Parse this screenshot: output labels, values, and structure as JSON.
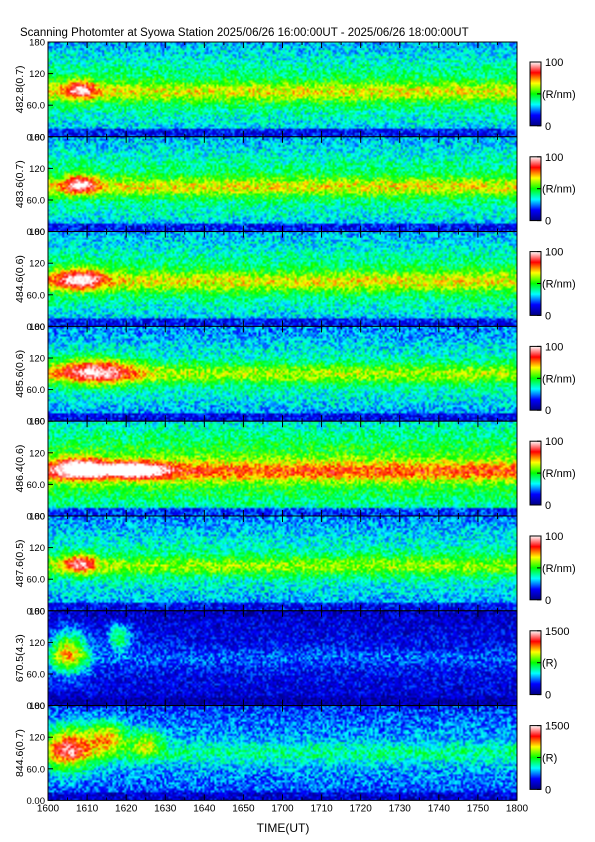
{
  "chart_data": {
    "type": "heatmap",
    "title": "Scanning Photomter at Syowa Station  2025/06/26 16:00:00UT - 2025/06/26 18:00:00UT",
    "xlabel": "TIME(UT)",
    "x_ticks": [
      "1600",
      "1610",
      "1620",
      "1630",
      "1640",
      "1650",
      "1700",
      "1710",
      "1720",
      "1730",
      "1740",
      "1750",
      "1800"
    ],
    "y_ticks": [
      "0.00",
      "60.0",
      "120",
      "180"
    ],
    "ylim": [
      0,
      180
    ],
    "colormap": [
      "#000080",
      "#0000ff",
      "#00ffff",
      "#00ff00",
      "#ffff00",
      "#ff0000",
      "#ffffff"
    ],
    "panels": [
      {
        "ylabel": "482.8(0.7)",
        "cbar_max": "100",
        "cbar_min": "0",
        "unit": "(R/nm)",
        "scale": 100,
        "band": [
          85,
          30,
          60
        ],
        "burst": [
          [
            8,
            90,
            4,
            18,
            65
          ]
        ],
        "bg": 0.45
      },
      {
        "ylabel": "483.6(0.7)",
        "cbar_max": "100",
        "cbar_min": "0",
        "unit": "(R/nm)",
        "scale": 100,
        "band": [
          85,
          28,
          62
        ],
        "burst": [
          [
            8,
            90,
            4,
            18,
            70
          ]
        ],
        "bg": 0.45
      },
      {
        "ylabel": "484.6(0.6)",
        "cbar_max": "100",
        "cbar_min": "0",
        "unit": "(R/nm)",
        "scale": 100,
        "band": [
          85,
          32,
          62
        ],
        "burst": [
          [
            8,
            90,
            6,
            20,
            72
          ]
        ],
        "bg": 0.45
      },
      {
        "ylabel": "485.6(0.6)",
        "cbar_max": "100",
        "cbar_min": "0",
        "unit": "(R/nm)",
        "scale": 100,
        "band": [
          90,
          30,
          60
        ],
        "burst": [
          [
            12,
            95,
            10,
            25,
            72
          ]
        ],
        "bg": 0.4
      },
      {
        "ylabel": "486.4(0.6)",
        "cbar_max": "100",
        "cbar_min": "0",
        "unit": "(R/nm)",
        "scale": 100,
        "band": [
          85,
          30,
          72
        ],
        "burst": [
          [
            8,
            90,
            6,
            20,
            82
          ],
          [
            22,
            88,
            8,
            15,
            78
          ]
        ],
        "bg": 0.55
      },
      {
        "ylabel": "487.6(0.5)",
        "cbar_max": "100",
        "cbar_min": "0",
        "unit": "(R/nm)",
        "scale": 100,
        "band": [
          85,
          30,
          55
        ],
        "burst": [
          [
            8,
            90,
            4,
            18,
            68
          ]
        ],
        "bg": 0.4
      },
      {
        "ylabel": "670.5(4.3)",
        "cbar_max": "1500",
        "cbar_min": "0",
        "unit": "(R)",
        "scale": 1500,
        "band": [
          90,
          30,
          20
        ],
        "burst": [
          [
            5,
            100,
            5,
            40,
            90
          ],
          [
            18,
            130,
            3,
            25,
            55
          ]
        ],
        "bg": 0.15
      },
      {
        "ylabel": "844.6(0.7)",
        "cbar_max": "1500",
        "cbar_min": "0",
        "unit": "(R)",
        "scale": 1500,
        "band": [
          90,
          30,
          30
        ],
        "burst": [
          [
            5,
            100,
            6,
            40,
            92
          ],
          [
            15,
            120,
            5,
            30,
            70
          ],
          [
            25,
            110,
            4,
            25,
            50
          ]
        ],
        "bg": 0.3
      }
    ]
  }
}
